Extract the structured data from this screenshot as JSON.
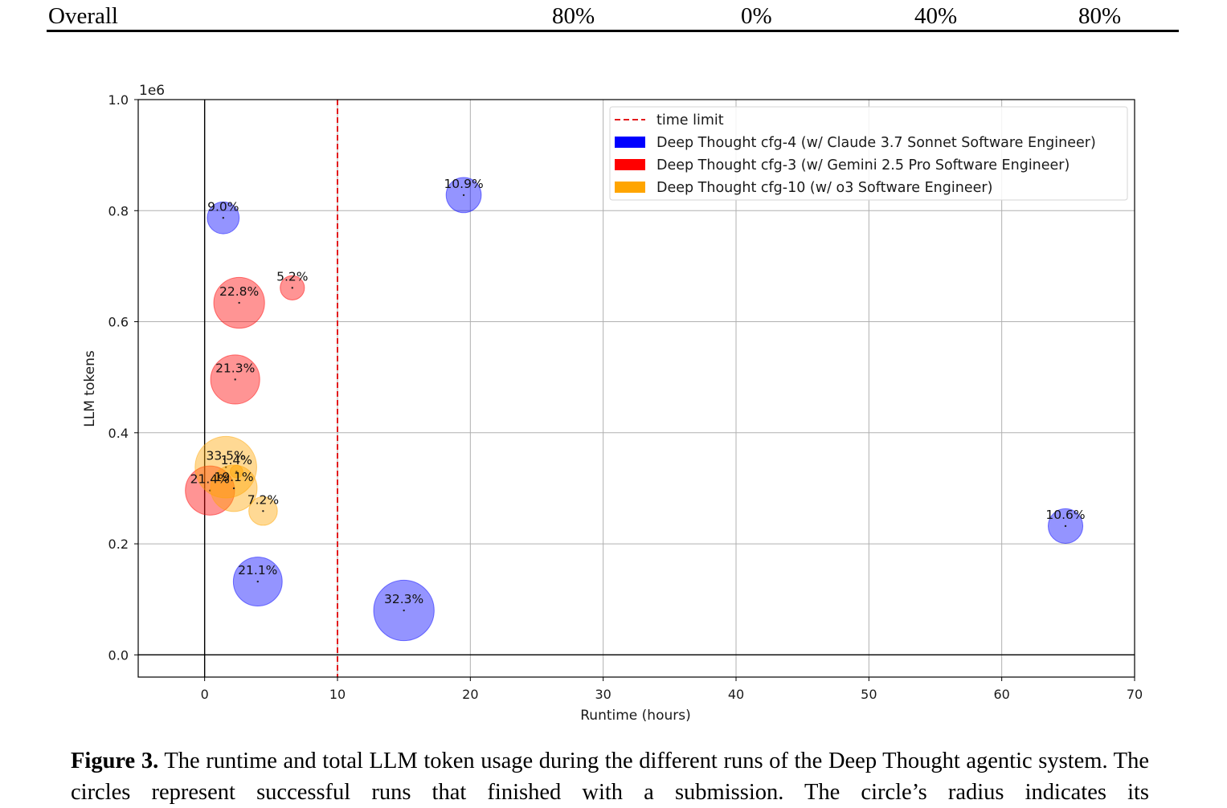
{
  "table_header": {
    "label": "Overall",
    "values": [
      "80%",
      "0%",
      "40%",
      "80%"
    ]
  },
  "chart_data": {
    "type": "scatter",
    "xlabel": "Runtime (hours)",
    "ylabel": "LLM tokens",
    "y_scale_label": "1e6",
    "xlim": [
      -5,
      70
    ],
    "ylim": [
      -0.04,
      1.0
    ],
    "x_ticks": [
      0,
      10,
      20,
      30,
      40,
      50,
      60,
      70
    ],
    "y_ticks": [
      0.0,
      0.2,
      0.4,
      0.6,
      0.8,
      1.0
    ],
    "y_tick_labels": [
      "0.0",
      "0.2",
      "0.4",
      "0.6",
      "0.8",
      "1.0"
    ],
    "grid": true,
    "legend_placement": "top-right",
    "time_limit_x": 10,
    "legend": [
      {
        "key": "limit",
        "label": "time limit",
        "color": "#e31a1c",
        "style": "dashed"
      },
      {
        "key": "claude",
        "label": "Deep Thought cfg-4 (w/ Claude 3.7 Sonnet Software Engineer)",
        "color": "#0000ff"
      },
      {
        "key": "gemini",
        "label": "Deep Thought cfg-3 (w/ Gemini 2.5 Pro Software Engineer)",
        "color": "#ff0000"
      },
      {
        "key": "o3",
        "label": "Deep Thought cfg-10 (w/ o3 Software Engineer)",
        "color": "#ffa500"
      }
    ],
    "series": [
      {
        "name": "Deep Thought cfg-4 (w/ Claude 3.7 Sonnet Software Engineer)",
        "color": "#0000ff",
        "points": [
          {
            "x": 1.4,
            "y": 0.787,
            "size_pct": 9.0,
            "label": "9.0%"
          },
          {
            "x": 19.5,
            "y": 0.828,
            "size_pct": 10.9,
            "label": "10.9%"
          },
          {
            "x": 4.0,
            "y": 0.132,
            "size_pct": 21.1,
            "label": "21.1%"
          },
          {
            "x": 15.0,
            "y": 0.08,
            "size_pct": 32.3,
            "label": "32.3%"
          },
          {
            "x": 64.8,
            "y": 0.232,
            "size_pct": 10.6,
            "label": "10.6%"
          }
        ]
      },
      {
        "name": "Deep Thought cfg-3 (w/ Gemini 2.5 Pro Software Engineer)",
        "color": "#ff0000",
        "points": [
          {
            "x": 2.6,
            "y": 0.634,
            "size_pct": 22.8,
            "label": "22.8%"
          },
          {
            "x": 6.6,
            "y": 0.661,
            "size_pct": 5.2,
            "label": "5.2%"
          },
          {
            "x": 2.3,
            "y": 0.496,
            "size_pct": 21.3,
            "label": "21.3%"
          },
          {
            "x": 0.4,
            "y": 0.296,
            "size_pct": 21.4,
            "label": "21.4%"
          }
        ]
      },
      {
        "name": "Deep Thought cfg-10 (w/ o3 Software Engineer)",
        "color": "#ffa500",
        "points": [
          {
            "x": 1.6,
            "y": 0.338,
            "size_pct": 33.5,
            "label": "33.5%"
          },
          {
            "x": 2.4,
            "y": 0.33,
            "size_pct": 1.4,
            "label": "1.4%"
          },
          {
            "x": 2.2,
            "y": 0.3,
            "size_pct": 19.1,
            "label": "19.1%"
          },
          {
            "x": 4.4,
            "y": 0.259,
            "size_pct": 7.2,
            "label": "7.2%"
          }
        ]
      }
    ]
  },
  "caption": {
    "label": "Figure 3.",
    "text": "The runtime and total LLM token usage during the different runs of the Deep Thought agentic system. The circles represent successful runs that finished with a submission. The circle’s radius indicates its"
  }
}
